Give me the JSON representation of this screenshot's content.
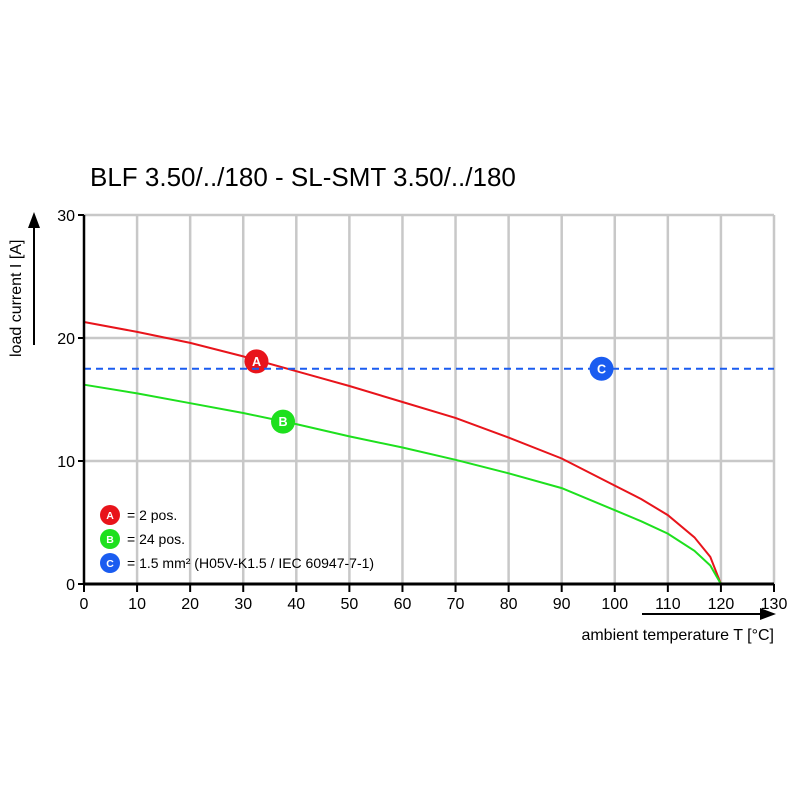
{
  "chart_data": {
    "type": "line",
    "title": "BLF 3.50/../180 - SL-SMT 3.50/../180",
    "xlabel": "ambient temperature T [°C]",
    "ylabel": "load current I [A]",
    "xlim": [
      0,
      130
    ],
    "ylim": [
      0,
      30
    ],
    "x_ticks": [
      "0",
      "10",
      "20",
      "30",
      "40",
      "50",
      "60",
      "70",
      "80",
      "90",
      "100",
      "110",
      "120",
      "130"
    ],
    "y_ticks": [
      "0",
      "10",
      "20",
      "30"
    ],
    "grid": true,
    "legend_position": "bottom-left",
    "series": [
      {
        "marker": "A",
        "color": "#e8141b",
        "style": "solid",
        "marker_at": [
          32.5,
          18.1
        ],
        "x": [
          0,
          10,
          20,
          30,
          40,
          50,
          60,
          70,
          80,
          90,
          100,
          105,
          110,
          115,
          118,
          120
        ],
        "y": [
          21.3,
          20.5,
          19.6,
          18.5,
          17.3,
          16.1,
          14.8,
          13.5,
          11.9,
          10.2,
          8.0,
          6.9,
          5.6,
          3.8,
          2.2,
          0
        ]
      },
      {
        "marker": "B",
        "color": "#1ee01e",
        "style": "solid",
        "marker_at": [
          37.5,
          13.2
        ],
        "x": [
          0,
          10,
          20,
          30,
          40,
          50,
          60,
          70,
          80,
          90,
          100,
          105,
          110,
          115,
          118,
          120
        ],
        "y": [
          16.2,
          15.5,
          14.7,
          13.9,
          13.0,
          12.0,
          11.1,
          10.1,
          9.0,
          7.8,
          6.0,
          5.1,
          4.1,
          2.7,
          1.5,
          0
        ]
      },
      {
        "marker": "C",
        "color": "#1a5cf0",
        "style": "dashed",
        "marker_at": [
          97.5,
          17.5
        ],
        "x": [
          0,
          130
        ],
        "y": [
          17.5,
          17.5
        ]
      }
    ],
    "legend": [
      {
        "marker": "A",
        "color": "#e8141b",
        "text": "= 2 pos."
      },
      {
        "marker": "B",
        "color": "#1ee01e",
        "text": "= 24 pos."
      },
      {
        "marker": "C",
        "color": "#1a5cf0",
        "text": "= 1.5 mm² (H05V-K1.5 / IEC 60947-7-1)"
      }
    ]
  }
}
